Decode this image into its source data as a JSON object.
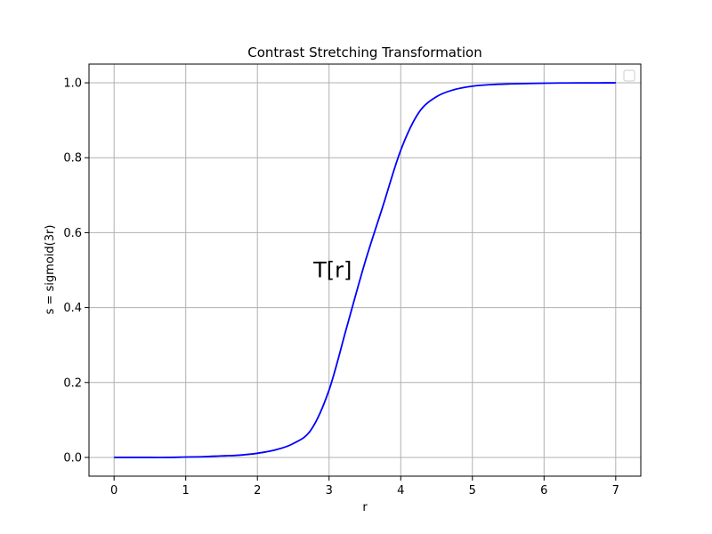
{
  "chart_data": {
    "type": "line",
    "title": "Contrast Stretching Transformation",
    "xlabel": "r",
    "ylabel": "s = sigmoid(3r)",
    "xlim": [
      -0.35,
      7.35
    ],
    "ylim": [
      -0.05,
      1.05
    ],
    "xticks": [
      0,
      1,
      2,
      3,
      4,
      5,
      6,
      7
    ],
    "xtick_labels": [
      "0",
      "1",
      "2",
      "3",
      "4",
      "5",
      "6",
      "7"
    ],
    "yticks": [
      0.0,
      0.2,
      0.4,
      0.6,
      0.8,
      1.0
    ],
    "ytick_labels": [
      "0.0",
      "0.2",
      "0.4",
      "0.6",
      "0.8",
      "1.0"
    ],
    "grid": true,
    "legend": {
      "position": "top-right",
      "entries": []
    },
    "series": [
      {
        "color": "#0000ff",
        "x": [
          0,
          0.25,
          0.5,
          0.75,
          1.0,
          1.25,
          1.5,
          1.75,
          2.0,
          2.25,
          2.5,
          2.75,
          3.0,
          3.25,
          3.5,
          3.75,
          4.0,
          4.25,
          4.5,
          4.75,
          5.0,
          5.25,
          5.5,
          5.75,
          6.0,
          6.25,
          6.5,
          6.75,
          7.0
        ],
        "y": [
          0.0,
          0.0,
          0.0,
          0.0,
          0.001,
          0.002,
          0.004,
          0.006,
          0.011,
          0.02,
          0.037,
          0.074,
          0.18,
          0.35,
          0.52,
          0.67,
          0.82,
          0.92,
          0.963,
          0.982,
          0.991,
          0.995,
          0.997,
          0.998,
          0.999,
          0.9995,
          0.9998,
          0.9999,
          1.0
        ]
      }
    ],
    "annotations": [
      {
        "text": "T[r]",
        "x": 3.05,
        "y": 0.5
      }
    ]
  }
}
